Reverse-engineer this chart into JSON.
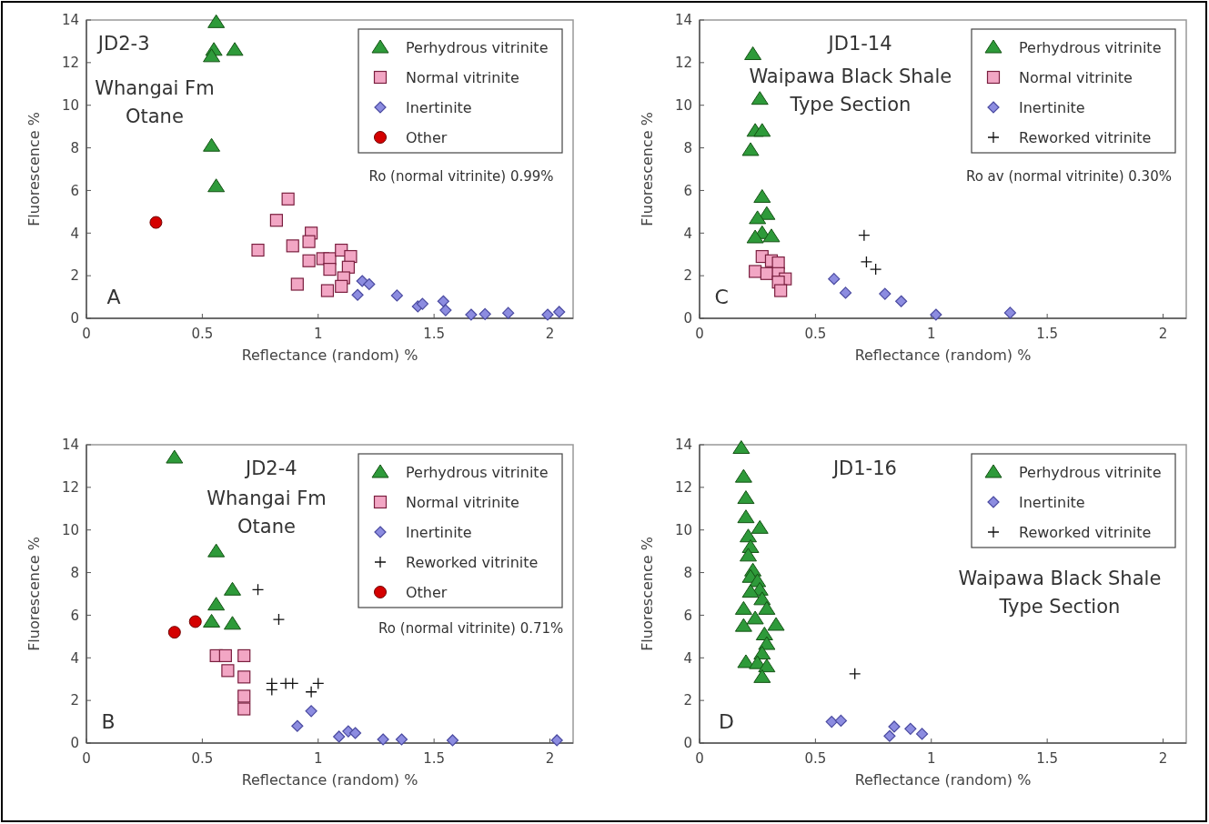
{
  "chart_data": [
    {
      "type": "scatter",
      "title": "JD2-3",
      "subtitle": "Whangai Fm\nOtane",
      "xlabel": "Reflectance (random) %",
      "ylabel": "Fluorescence %",
      "xlim": [
        0,
        2.1
      ],
      "ylim": [
        0,
        14
      ],
      "xticks": [
        0,
        0.5,
        1,
        1.5,
        2
      ],
      "yticks": [
        0,
        2,
        4,
        6,
        8,
        10,
        12,
        14
      ],
      "legend": "top right",
      "annotations": [
        "A",
        "Ro (normal vitrinite) 0.99%"
      ],
      "series": [
        {
          "name": "Perhydrous vitrinite",
          "color": "#2e9a3a",
          "marker": "triangle",
          "x": [
            0.56,
            0.55,
            0.54,
            0.64,
            0.54,
            0.56
          ],
          "values": [
            13.9,
            12.6,
            12.3,
            12.6,
            8.1,
            6.2
          ]
        },
        {
          "name": "Normal vitrinite",
          "color": "#f2a6c4",
          "marker": "square",
          "x": [
            0.87,
            0.82,
            0.74,
            0.89,
            0.97,
            0.96,
            0.96,
            0.91,
            1.02,
            1.05,
            1.05,
            1.04,
            1.1,
            1.14,
            1.13,
            1.11,
            1.1
          ],
          "values": [
            5.6,
            4.6,
            3.2,
            3.4,
            4.0,
            3.6,
            2.7,
            1.6,
            2.8,
            2.8,
            2.3,
            1.3,
            3.2,
            2.9,
            2.4,
            1.9,
            1.5
          ]
        },
        {
          "name": "Inertinite",
          "color": "#8c8ce0",
          "marker": "diamond",
          "x": [
            1.19,
            1.22,
            1.17,
            1.34,
            1.43,
            1.45,
            1.54,
            1.55,
            1.66,
            1.72,
            1.82,
            1.99,
            2.04
          ],
          "values": [
            1.75,
            1.6,
            1.1,
            1.07,
            0.56,
            0.68,
            0.8,
            0.38,
            0.17,
            0.2,
            0.25,
            0.17,
            0.3
          ]
        },
        {
          "name": "Other",
          "color": "#d40000",
          "marker": "circle",
          "x": [
            0.3
          ],
          "values": [
            4.5
          ]
        }
      ]
    },
    {
      "type": "scatter",
      "title": "JD1-14",
      "subtitle": "Waipawa Black Shale\nType Section",
      "xlabel": "Reflectance (random) %",
      "ylabel": "Fluorescence %",
      "xlim": [
        0,
        2.1
      ],
      "ylim": [
        0,
        14
      ],
      "xticks": [
        0,
        0.5,
        1,
        1.5,
        2
      ],
      "yticks": [
        0,
        2,
        4,
        6,
        8,
        10,
        12,
        14
      ],
      "legend": "top right",
      "annotations": [
        "C",
        "Ro av (normal vitrinite) 0.30%"
      ],
      "series": [
        {
          "name": "Perhydrous vitrinite",
          "color": "#2e9a3a",
          "marker": "triangle",
          "x": [
            0.23,
            0.26,
            0.24,
            0.27,
            0.22,
            0.27,
            0.29,
            0.25,
            0.27,
            0.24,
            0.31
          ],
          "values": [
            12.4,
            10.3,
            8.8,
            8.8,
            7.9,
            5.7,
            4.9,
            4.7,
            4.0,
            3.8,
            3.85
          ]
        },
        {
          "name": "Normal vitrinite",
          "color": "#f2a6c4",
          "marker": "square",
          "x": [
            0.27,
            0.31,
            0.34,
            0.24,
            0.29,
            0.34,
            0.37,
            0.34,
            0.35
          ],
          "values": [
            2.9,
            2.7,
            2.6,
            2.2,
            2.1,
            2.1,
            1.85,
            1.7,
            1.3
          ]
        },
        {
          "name": "Inertinite",
          "color": "#8c8ce0",
          "marker": "diamond",
          "x": [
            0.58,
            0.63,
            0.8,
            0.87,
            1.02,
            1.34
          ],
          "values": [
            1.85,
            1.2,
            1.15,
            0.8,
            0.17,
            0.26
          ]
        },
        {
          "name": "Reworked vitrinite",
          "color": "#111111",
          "marker": "cross",
          "x": [
            0.71,
            0.72,
            0.76
          ],
          "values": [
            3.9,
            2.65,
            2.3
          ]
        }
      ]
    },
    {
      "type": "scatter",
      "title": "JD2-4",
      "subtitle": "Whangai Fm\nOtane",
      "xlabel": "Reflectance (random) %",
      "ylabel": "Fluorescence %",
      "xlim": [
        0,
        2.1
      ],
      "ylim": [
        0,
        14
      ],
      "xticks": [
        0,
        0.5,
        1,
        1.5,
        2
      ],
      "yticks": [
        0,
        2,
        4,
        6,
        8,
        10,
        12,
        14
      ],
      "legend": "top right",
      "annotations": [
        "B",
        "Ro (normal vitrinite) 0.71%"
      ],
      "series": [
        {
          "name": "Perhydrous vitrinite",
          "color": "#2e9a3a",
          "marker": "triangle",
          "x": [
            0.38,
            0.56,
            0.63,
            0.56,
            0.54,
            0.63
          ],
          "values": [
            13.4,
            9.0,
            7.2,
            6.5,
            5.7,
            5.6
          ]
        },
        {
          "name": "Normal vitrinite",
          "color": "#f2a6c4",
          "marker": "square",
          "x": [
            0.56,
            0.6,
            0.61,
            0.68,
            0.68,
            0.68,
            0.68
          ],
          "values": [
            4.1,
            4.1,
            3.4,
            4.1,
            3.1,
            2.2,
            1.6
          ]
        },
        {
          "name": "Inertinite",
          "color": "#8c8ce0",
          "marker": "diamond",
          "x": [
            0.91,
            0.97,
            1.09,
            1.13,
            1.16,
            1.28,
            1.36,
            1.58,
            2.03
          ],
          "values": [
            0.8,
            1.5,
            0.3,
            0.55,
            0.47,
            0.17,
            0.17,
            0.13,
            0.13
          ]
        },
        {
          "name": "Reworked vitrinite",
          "color": "#111111",
          "marker": "cross",
          "x": [
            0.74,
            0.83,
            0.8,
            0.8,
            0.86,
            0.89,
            0.97,
            1.0
          ],
          "values": [
            7.2,
            5.8,
            2.8,
            2.5,
            2.8,
            2.8,
            2.4,
            2.8
          ]
        },
        {
          "name": "Other",
          "color": "#d40000",
          "marker": "circle",
          "x": [
            0.38,
            0.47
          ],
          "values": [
            5.2,
            5.7
          ]
        }
      ]
    },
    {
      "type": "scatter",
      "title": "JD1-16",
      "subtitle": "Waipawa Black Shale\nType Section",
      "xlabel": "Reflectance (random) %",
      "ylabel": "Fluorescence %",
      "xlim": [
        0,
        2.1
      ],
      "ylim": [
        0,
        14
      ],
      "xticks": [
        0,
        0.5,
        1,
        1.5,
        2
      ],
      "yticks": [
        0,
        2,
        4,
        6,
        8,
        10,
        12,
        14
      ],
      "legend": "top right",
      "annotations": [
        "D"
      ],
      "series": [
        {
          "name": "Perhydrous vitrinite",
          "color": "#2e9a3a",
          "marker": "triangle",
          "x": [
            0.18,
            0.19,
            0.2,
            0.2,
            0.26,
            0.21,
            0.22,
            0.21,
            0.23,
            0.22,
            0.25,
            0.26,
            0.22,
            0.27,
            0.29,
            0.19,
            0.24,
            0.19,
            0.33,
            0.28,
            0.29,
            0.27,
            0.2,
            0.25,
            0.29,
            0.27
          ],
          "values": [
            13.85,
            12.5,
            11.5,
            10.6,
            10.1,
            9.7,
            9.2,
            8.8,
            8.1,
            7.8,
            7.6,
            7.2,
            7.1,
            6.75,
            6.3,
            6.3,
            5.85,
            5.5,
            5.55,
            5.1,
            4.65,
            4.2,
            3.8,
            3.75,
            3.6,
            3.1
          ]
        },
        {
          "name": "Inertinite",
          "color": "#8c8ce0",
          "marker": "diamond",
          "x": [
            0.57,
            0.61,
            0.84,
            0.82,
            0.91,
            0.96
          ],
          "values": [
            1.0,
            1.05,
            0.77,
            0.33,
            0.67,
            0.43
          ]
        },
        {
          "name": "Reworked vitrinite",
          "color": "#111111",
          "marker": "cross",
          "x": [
            0.67
          ],
          "values": [
            3.25
          ]
        }
      ]
    }
  ]
}
